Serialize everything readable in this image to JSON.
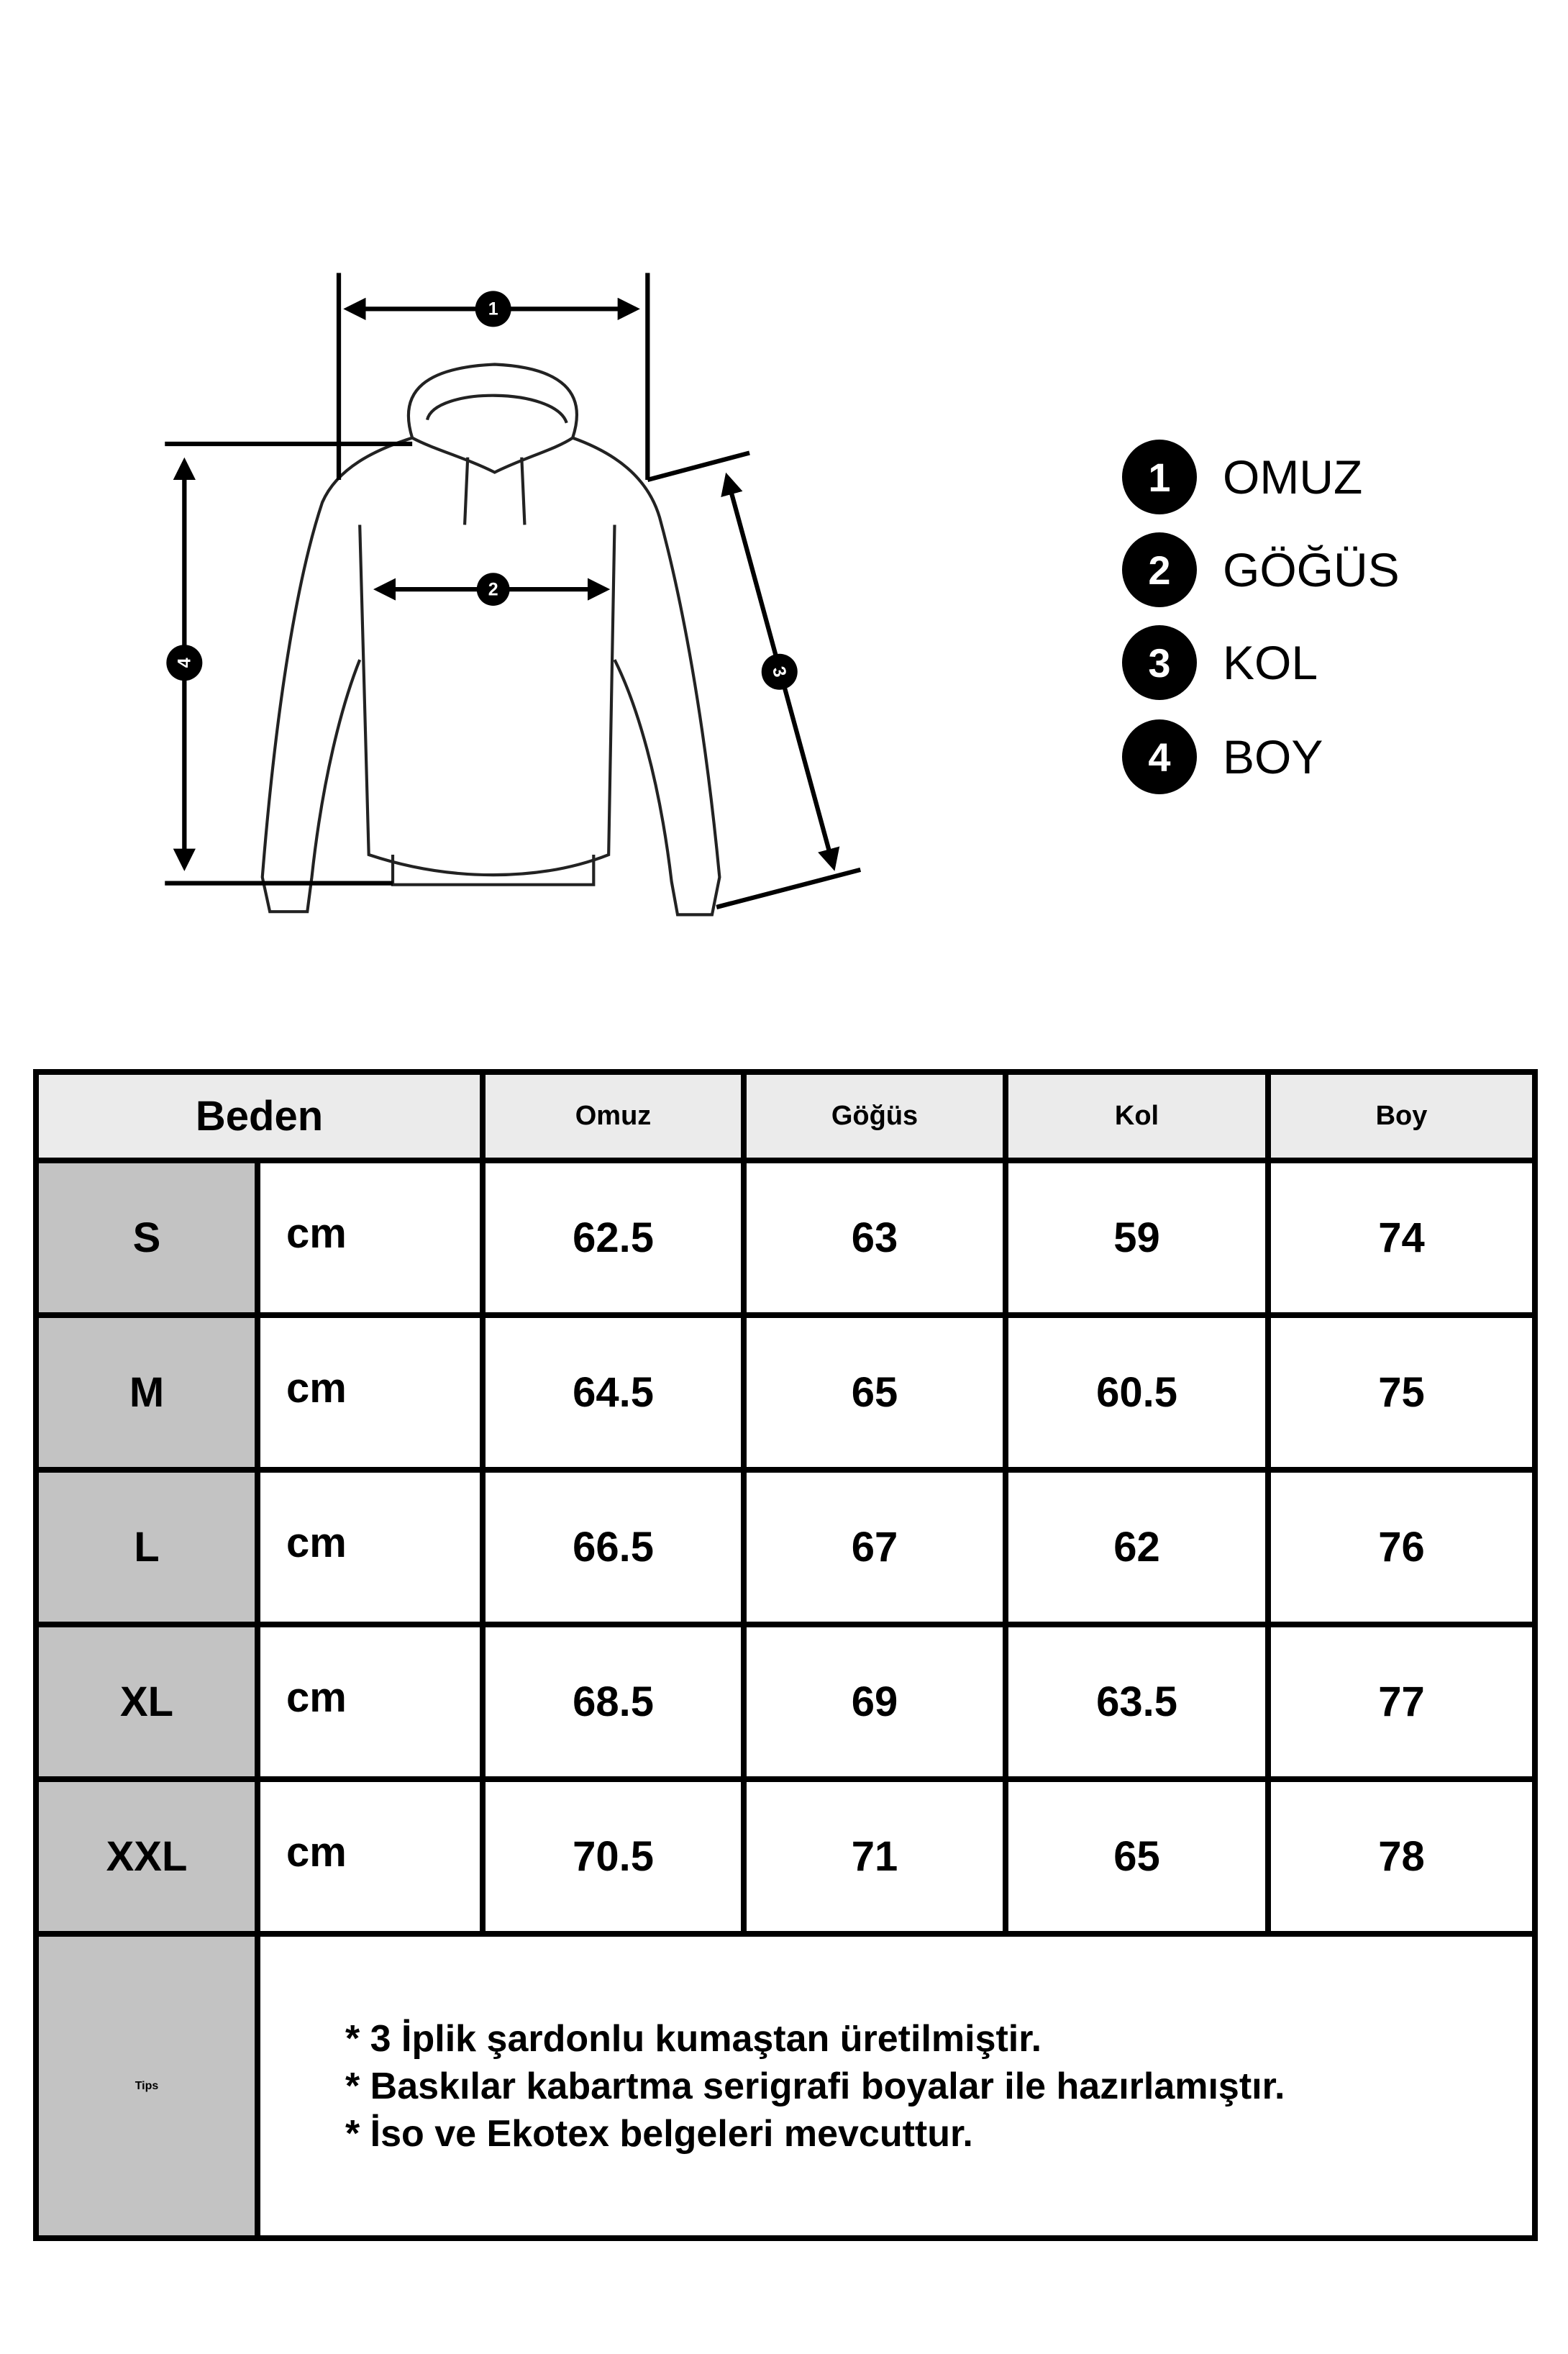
{
  "diagram": {
    "markers": [
      "1",
      "2",
      "3",
      "4"
    ],
    "legend": [
      {
        "num": "1",
        "label": "OMUZ"
      },
      {
        "num": "2",
        "label": "GÖĞÜS"
      },
      {
        "num": "3",
        "label": "KOL"
      },
      {
        "num": "4",
        "label": "BOY"
      }
    ]
  },
  "table": {
    "header": {
      "size": "Beden",
      "columns": [
        "Omuz",
        "Göğüs",
        "Kol",
        "Boy"
      ]
    },
    "rows": [
      {
        "size": "S",
        "unit": "cm",
        "values": [
          "62.5",
          "63",
          "59",
          "74"
        ]
      },
      {
        "size": "M",
        "unit": "cm",
        "values": [
          "64.5",
          "65",
          "60.5",
          "75"
        ]
      },
      {
        "size": "L",
        "unit": "cm",
        "values": [
          "66.5",
          "67",
          "62",
          "76"
        ]
      },
      {
        "size": "XL",
        "unit": "cm",
        "values": [
          "68.5",
          "69",
          "63.5",
          "77"
        ]
      },
      {
        "size": "XXL",
        "unit": "cm",
        "values": [
          "70.5",
          "71",
          "65",
          "78"
        ]
      }
    ],
    "tips": {
      "label": "Tips",
      "lines": [
        "* 3 İplik şardonlu kumaştan üretilmiştir.",
        "* Baskılar kabartma serigrafi boyalar ile hazırlamıştır.",
        "* İso ve Ekotex belgeleri mevcuttur."
      ]
    }
  },
  "colors": {
    "header_bg": "#ebebeb",
    "size_bg": "#c3c3c3",
    "border": "#000000"
  }
}
